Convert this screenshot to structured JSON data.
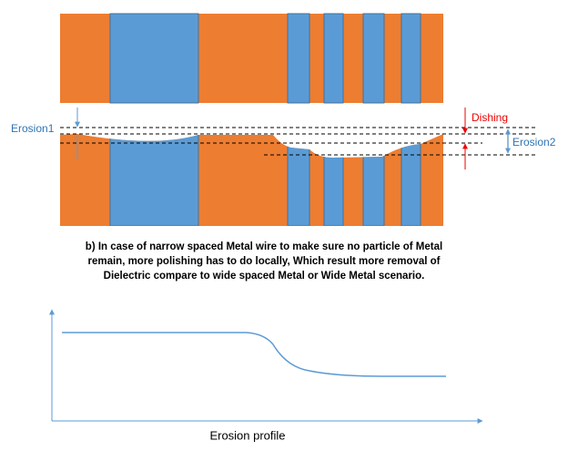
{
  "labels": {
    "erosion1": "Erosion1",
    "dishing": "Dishing",
    "erosion2": "Erosion2"
  },
  "caption": [
    "b) In case of narrow spaced Metal wire to make sure no particle of Metal",
    "remain, more polishing has to do locally, Which result more removal of",
    "Dielectric compare to wide spaced Metal or Wide Metal scenario."
  ],
  "graph": {
    "x_axis_label": "Erosion profile"
  }
}
